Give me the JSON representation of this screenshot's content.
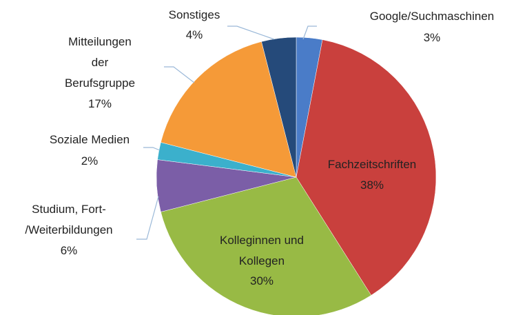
{
  "chart_data": {
    "type": "pie",
    "categories": [
      "Google/Suchmaschinen",
      "Fachzeitschriften",
      "Kolleginnen und\nKollegen",
      "Studium, Fort-\n/Weiterbildungen",
      "Soziale Medien",
      "Mitteilungen\nder\nBerufsgruppe",
      "Sonstiges"
    ],
    "values": [
      3,
      38,
      30,
      6,
      2,
      17,
      4
    ],
    "value_labels": [
      "3%",
      "38%",
      "30%",
      "6%",
      "2%",
      "17%",
      "4%"
    ],
    "colors": [
      "#4a7cc8",
      "#c9403d",
      "#98ba45",
      "#7b5ea7",
      "#3bb0cc",
      "#f59a38",
      "#254a7a"
    ]
  }
}
